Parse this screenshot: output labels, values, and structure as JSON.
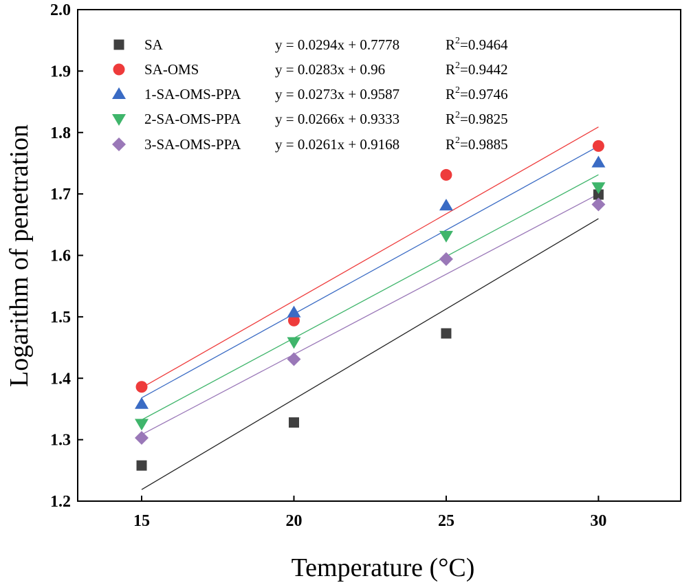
{
  "chart_data": {
    "type": "scatter",
    "xlabel": "Temperature (°C)",
    "ylabel": "Logarithm of penetration",
    "xlim": [
      12.9,
      32.7
    ],
    "ylim": [
      1.2,
      2.0
    ],
    "xticks": [
      15,
      20,
      25,
      30
    ],
    "yticks": [
      1.2,
      1.3,
      1.4,
      1.5,
      1.6,
      1.7,
      1.8,
      1.9,
      2.0
    ],
    "x": [
      15,
      20,
      25,
      30
    ],
    "legend_position": "top-left",
    "grid": false,
    "series": [
      {
        "name": "SA",
        "marker": "square",
        "color": "#404040",
        "line_color": "#222222",
        "values": [
          1.258,
          1.328,
          1.473,
          1.699
        ],
        "fit": {
          "slope": 0.0294,
          "intercept": 0.7778
        },
        "equation": "y = 0.0294x + 0.7778",
        "r2_label": "R",
        "r2_sup": "2",
        "r2_value": "=0.9464"
      },
      {
        "name": "SA-OMS",
        "marker": "circle",
        "color": "#ee3b3b",
        "line_color": "#ee3b3b",
        "values": [
          1.386,
          1.494,
          1.731,
          1.778
        ],
        "fit": {
          "slope": 0.0283,
          "intercept": 0.96
        },
        "equation": "y = 0.0283x + 0.96",
        "r2_label": "R",
        "r2_sup": "2",
        "r2_value": "=0.9442"
      },
      {
        "name": "1-SA-OMS-PPA",
        "marker": "triangle-up",
        "color": "#3a6bc4",
        "line_color": "#3a6bc4",
        "values": [
          1.358,
          1.507,
          1.681,
          1.751
        ],
        "fit": {
          "slope": 0.0273,
          "intercept": 0.9587
        },
        "equation": "y = 0.0273x + 0.9587",
        "r2_label": "R",
        "r2_sup": "2",
        "r2_value": "=0.9746"
      },
      {
        "name": "2-SA-OMS-PPA",
        "marker": "triangle-down",
        "color": "#3fb56b",
        "line_color": "#3fb56b",
        "values": [
          1.326,
          1.459,
          1.632,
          1.711
        ],
        "fit": {
          "slope": 0.0266,
          "intercept": 0.9333
        },
        "equation": "y = 0.0266x + 0.9333",
        "r2_label": "R",
        "r2_sup": "2",
        "r2_value": "=0.9825"
      },
      {
        "name": "3-SA-OMS-PPA",
        "marker": "diamond",
        "color": "#9a78b8",
        "line_color": "#9a78b8",
        "values": [
          1.303,
          1.431,
          1.594,
          1.683
        ],
        "fit": {
          "slope": 0.0261,
          "intercept": 0.9168
        },
        "equation": "y = 0.0261x + 0.9168",
        "r2_label": "R",
        "r2_sup": "2",
        "r2_value": "=0.9885"
      }
    ]
  }
}
